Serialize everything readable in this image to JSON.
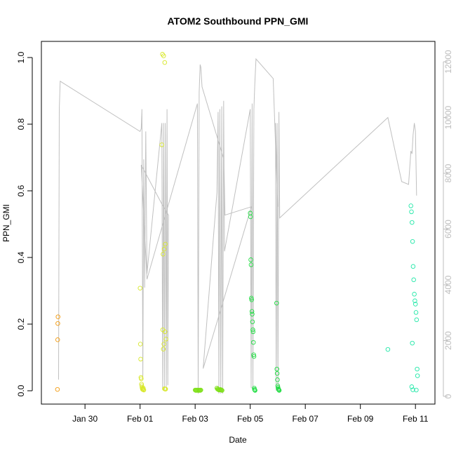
{
  "chart_data": {
    "type": "scatter",
    "title": "ATOM2 Southbound PPN_GMI",
    "xlabel": "Date",
    "ylabel": "PPN_GMI",
    "x_type": "date",
    "xlim": [
      "2016-01-28T10:00",
      "2016-02-11T17:00"
    ],
    "ylim": [
      0,
      1.0
    ],
    "y_ticks": [
      0.0,
      0.2,
      0.4,
      0.6,
      0.8,
      1.0
    ],
    "y_tick_labels": [
      "0.0",
      "0.2",
      "0.4",
      "0.6",
      "0.8",
      "1.0"
    ],
    "x_ticks": [
      "2016-01-30",
      "2016-02-01",
      "2016-02-03",
      "2016-02-05",
      "2016-02-07",
      "2016-02-09",
      "2016-02-11"
    ],
    "x_tick_labels": [
      "Jan 30",
      "Feb 01",
      "Feb 03",
      "Feb 05",
      "Feb 07",
      "Feb 09",
      "Feb 11"
    ],
    "right_axis": {
      "color": "#bdbdbd",
      "ylim": [
        0,
        12000
      ],
      "ticks": [
        0,
        2000,
        4000,
        6000,
        8000,
        10000,
        12000
      ],
      "tick_labels": [
        "0",
        "2000",
        "4000",
        "6000",
        "8000",
        "10000",
        "12000"
      ],
      "line_color": "#c0c0c0",
      "line": [
        [
          "2016-01-29T01:00",
          600
        ],
        [
          "2016-01-29T01:36",
          10300
        ],
        [
          "2016-01-29T02:24",
          11300
        ],
        [
          "2016-02-01T00:00",
          9500
        ],
        [
          "2016-02-01T01:00",
          9600
        ],
        [
          "2016-02-01T01:36",
          10300
        ],
        [
          "2016-02-01T02:24",
          600
        ],
        [
          "2016-02-01T03:12",
          8500
        ],
        [
          "2016-02-01T04:00",
          3900
        ],
        [
          "2016-02-01T05:00",
          9500
        ],
        [
          "2016-02-01T06:00",
          4400
        ],
        [
          "2016-02-01T19:00",
          9800
        ],
        [
          "2016-02-01T19:40",
          300
        ],
        [
          "2016-02-01T20:30",
          9800
        ],
        [
          "2016-02-01T21:10",
          200
        ],
        [
          "2016-02-01T22:00",
          9800
        ],
        [
          "2016-02-01T22:50",
          300
        ],
        [
          "2016-02-01T23:30",
          10300
        ],
        [
          "2016-02-02T00:10",
          400
        ],
        [
          "2016-02-02T00:48",
          6500
        ],
        [
          "2016-02-01T19:00",
          6900
        ],
        [
          "2016-02-01T01:00",
          8300
        ],
        [
          "2016-02-01T06:00",
          4200
        ],
        [
          "2016-02-03T02:00",
          10500
        ],
        [
          "2016-02-03T02:40",
          100
        ],
        [
          "2016-02-03T03:30",
          10900
        ],
        [
          "2016-02-03T04:20",
          11900
        ],
        [
          "2016-02-03T05:00",
          11800
        ],
        [
          "2016-02-03T06:00",
          11100
        ],
        [
          "2016-02-04T01:00",
          8500
        ],
        [
          "2016-02-04T02:00",
          6500
        ],
        [
          "2016-02-05T01:00",
          6800
        ],
        [
          "2016-02-03T07:00",
          1000
        ],
        [
          "2016-02-03T19:00",
          7300
        ],
        [
          "2016-02-03T20:00",
          10200
        ],
        [
          "2016-02-03T20:40",
          100
        ],
        [
          "2016-02-03T21:30",
          10300
        ],
        [
          "2016-02-03T22:20",
          100
        ],
        [
          "2016-02-03T23:10",
          10400
        ],
        [
          "2016-02-04T00:00",
          100
        ],
        [
          "2016-02-04T00:50",
          10600
        ],
        [
          "2016-02-04T01:36",
          5200
        ],
        [
          "2016-02-05T00:00",
          10300
        ],
        [
          "2016-02-05T00:50",
          300
        ],
        [
          "2016-02-05T01:40",
          10500
        ],
        [
          "2016-02-05T02:20",
          300
        ],
        [
          "2016-02-05T03:10",
          10300
        ],
        [
          "2016-02-05T04:00",
          11200
        ],
        [
          "2016-02-05T05:00",
          12100
        ],
        [
          "2016-02-05T20:00",
          11400
        ],
        [
          "2016-02-06T00:00",
          6800
        ],
        [
          "2016-02-05T22:00",
          9800
        ],
        [
          "2016-02-05T22:40",
          200
        ],
        [
          "2016-02-05T23:30",
          9800
        ],
        [
          "2016-02-06T00:10",
          200
        ],
        [
          "2016-02-06T01:00",
          10200
        ],
        [
          "2016-02-06T01:40",
          6400
        ],
        [
          "2016-02-10T00:00",
          10000
        ],
        [
          "2016-02-10T12:00",
          7700
        ],
        [
          "2016-02-10T18:00",
          7600
        ],
        [
          "2016-02-10T20:00",
          8800
        ],
        [
          "2016-02-10T21:00",
          8700
        ],
        [
          "2016-02-10T22:00",
          9400
        ],
        [
          "2016-02-10T23:00",
          9800
        ],
        [
          "2016-02-11T00:00",
          9500
        ],
        [
          "2016-02-11T01:00",
          7200
        ]
      ]
    },
    "series": [
      {
        "color": "#f39c12",
        "points": [
          [
            "2016-01-29T00:00",
            0.004
          ],
          [
            "2016-01-29T00:10",
            0.153
          ],
          [
            "2016-01-29T00:20",
            0.202
          ],
          [
            "2016-01-29T00:30",
            0.222
          ]
        ]
      },
      {
        "color": "#d8e82a",
        "points": [
          [
            "2016-02-01T00:00",
            0.308
          ],
          [
            "2016-02-01T00:15",
            0.14
          ],
          [
            "2016-02-01T00:30",
            0.095
          ],
          [
            "2016-02-01T00:45",
            0.04
          ],
          [
            "2016-02-01T01:00",
            0.036
          ],
          [
            "2016-02-01T01:15",
            0.02
          ],
          [
            "2016-02-01T01:30",
            0.015
          ],
          [
            "2016-02-01T01:45",
            0.01
          ],
          [
            "2016-02-01T02:00",
            0.006
          ],
          [
            "2016-02-01T02:15",
            0.004
          ],
          [
            "2016-02-01T02:30",
            0.005
          ],
          [
            "2016-02-01T02:45",
            0.008
          ],
          [
            "2016-02-01T03:00",
            0.003
          ],
          [
            "2016-02-01T03:15",
            0.002
          ],
          [
            "2016-02-01T19:30",
            1.01
          ],
          [
            "2016-02-01T20:30",
            1.005
          ],
          [
            "2016-02-01T21:30",
            0.985
          ],
          [
            "2016-02-01T19:00",
            0.738
          ],
          [
            "2016-02-01T22:00",
            0.44
          ],
          [
            "2016-02-01T21:00",
            0.425
          ],
          [
            "2016-02-01T20:00",
            0.41
          ],
          [
            "2016-02-01T19:45",
            0.183
          ],
          [
            "2016-02-01T21:45",
            0.177
          ],
          [
            "2016-02-01T22:30",
            0.155
          ],
          [
            "2016-02-01T20:45",
            0.14
          ],
          [
            "2016-02-01T20:15",
            0.125
          ],
          [
            "2016-02-01T21:15",
            0.006
          ],
          [
            "2016-02-01T21:50",
            0.005
          ],
          [
            "2016-02-01T22:15",
            0.005
          ]
        ]
      },
      {
        "color": "#7fe01a",
        "points": [
          [
            "2016-02-03T00:00",
            0.002
          ],
          [
            "2016-02-03T00:30",
            0.001
          ],
          [
            "2016-02-03T01:00",
            0.001
          ],
          [
            "2016-02-03T01:30",
            0.002
          ],
          [
            "2016-02-03T02:00",
            0.001
          ],
          [
            "2016-02-03T02:30",
            0.002
          ],
          [
            "2016-02-03T03:00",
            0.001
          ],
          [
            "2016-02-03T03:30",
            0.001
          ],
          [
            "2016-02-03T04:00",
            0.002
          ],
          [
            "2016-02-03T04:30",
            0.001
          ],
          [
            "2016-02-03T05:00",
            0.002
          ],
          [
            "2016-02-03T19:00",
            0.008
          ],
          [
            "2016-02-03T19:30",
            0.005
          ],
          [
            "2016-02-03T20:00",
            0.004
          ],
          [
            "2016-02-03T20:30",
            0.003
          ],
          [
            "2016-02-03T21:00",
            0.002
          ],
          [
            "2016-02-03T21:30",
            0.003
          ],
          [
            "2016-02-03T22:00",
            0.004
          ],
          [
            "2016-02-03T22:30",
            0.003
          ],
          [
            "2016-02-03T23:00",
            0.002
          ],
          [
            "2016-02-03T23:30",
            0.001
          ]
        ]
      },
      {
        "color": "#22dd44",
        "points": [
          [
            "2016-02-05T00:00",
            0.533
          ],
          [
            "2016-02-05T00:15",
            0.522
          ],
          [
            "2016-02-05T00:30",
            0.393
          ],
          [
            "2016-02-05T00:45",
            0.378
          ],
          [
            "2016-02-05T01:00",
            0.278
          ],
          [
            "2016-02-05T01:15",
            0.273
          ],
          [
            "2016-02-05T01:30",
            0.238
          ],
          [
            "2016-02-05T01:45",
            0.23
          ],
          [
            "2016-02-05T02:00",
            0.207
          ],
          [
            "2016-02-05T02:15",
            0.183
          ],
          [
            "2016-02-05T02:30",
            0.177
          ],
          [
            "2016-02-05T02:45",
            0.145
          ],
          [
            "2016-02-05T03:00",
            0.108
          ],
          [
            "2016-02-05T03:15",
            0.103
          ],
          [
            "2016-02-05T03:30",
            0.008
          ],
          [
            "2016-02-05T03:45",
            0.004
          ],
          [
            "2016-02-05T04:00",
            0.002
          ],
          [
            "2016-02-05T04:15",
            0.001
          ],
          [
            "2016-02-05T23:00",
            0.263
          ],
          [
            "2016-02-05T23:15",
            0.065
          ],
          [
            "2016-02-05T23:30",
            0.052
          ],
          [
            "2016-02-05T23:45",
            0.033
          ],
          [
            "2016-02-06T00:00",
            0.015
          ],
          [
            "2016-02-06T00:15",
            0.01
          ],
          [
            "2016-02-06T00:30",
            0.006
          ],
          [
            "2016-02-06T00:45",
            0.004
          ],
          [
            "2016-02-06T01:00",
            0.002
          ],
          [
            "2016-02-06T01:15",
            0.001
          ]
        ]
      },
      {
        "color": "#22e8a8",
        "points": [
          [
            "2016-02-10T00:00",
            0.124
          ],
          [
            "2016-02-10T20:00",
            0.555
          ],
          [
            "2016-02-10T20:30",
            0.537
          ],
          [
            "2016-02-10T21:00",
            0.505
          ],
          [
            "2016-02-10T21:30",
            0.448
          ],
          [
            "2016-02-10T22:00",
            0.373
          ],
          [
            "2016-02-10T22:30",
            0.333
          ],
          [
            "2016-02-10T23:00",
            0.29
          ],
          [
            "2016-02-10T23:30",
            0.27
          ],
          [
            "2016-02-11T00:00",
            0.26
          ],
          [
            "2016-02-11T00:30",
            0.235
          ],
          [
            "2016-02-11T01:00",
            0.213
          ],
          [
            "2016-02-10T21:15",
            0.143
          ],
          [
            "2016-02-11T01:30",
            0.065
          ],
          [
            "2016-02-11T01:45",
            0.045
          ],
          [
            "2016-02-10T20:45",
            0.012
          ],
          [
            "2016-02-10T21:45",
            0.003
          ],
          [
            "2016-02-11T00:45",
            0.002
          ]
        ]
      }
    ]
  }
}
